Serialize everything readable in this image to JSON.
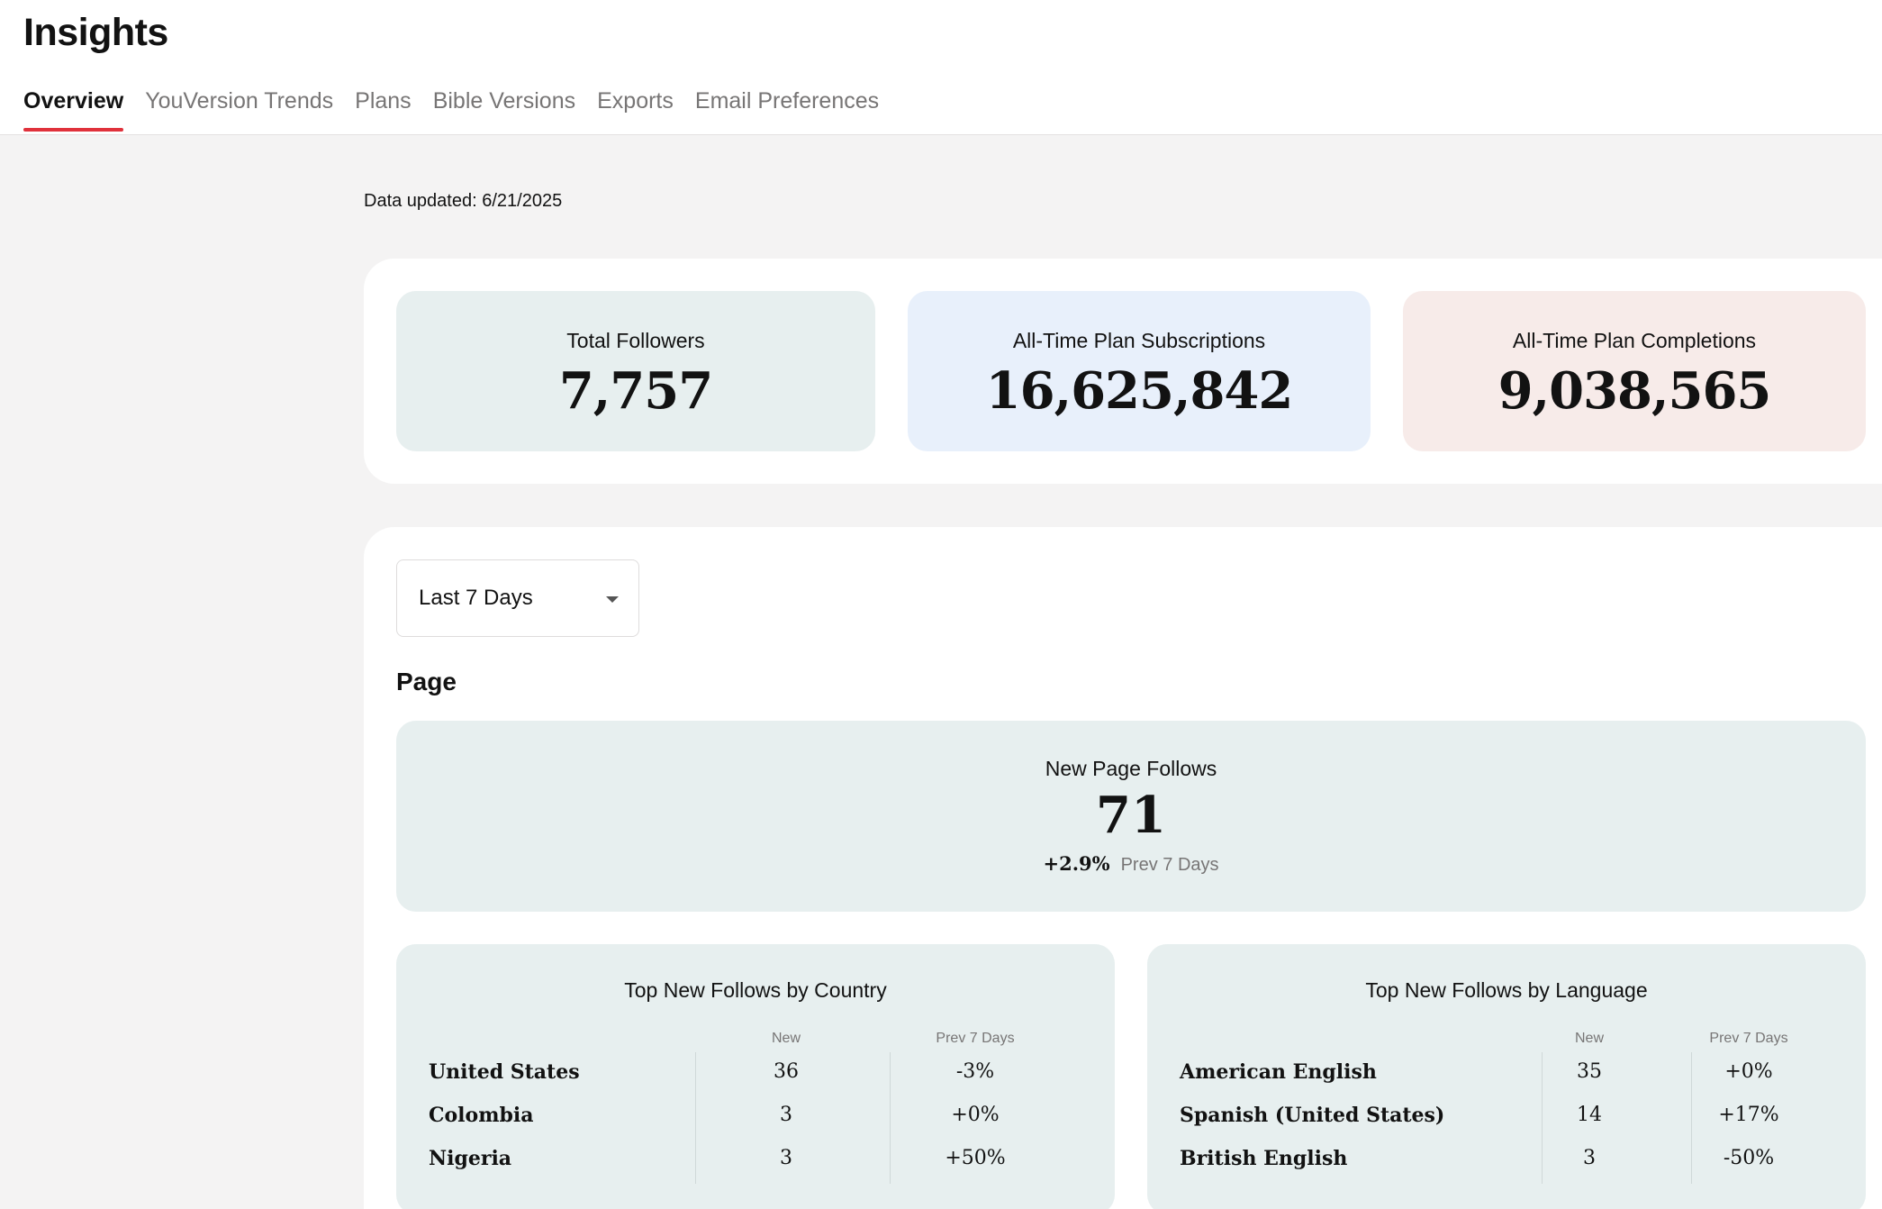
{
  "header": {
    "title": "Insights",
    "tabs": [
      {
        "label": "Overview",
        "active": true
      },
      {
        "label": "YouVersion Trends",
        "active": false
      },
      {
        "label": "Plans",
        "active": false
      },
      {
        "label": "Bible Versions",
        "active": false
      },
      {
        "label": "Exports",
        "active": false
      },
      {
        "label": "Email Preferences",
        "active": false
      }
    ]
  },
  "data_updated": "Data updated: 6/21/2025",
  "totals": {
    "followers": {
      "label": "Total Followers",
      "value": "7,757"
    },
    "subscriptions": {
      "label": "All-Time Plan Subscriptions",
      "value": "16,625,842"
    },
    "completions": {
      "label": "All-Time Plan Completions",
      "value": "9,038,565"
    }
  },
  "range_select": {
    "value": "Last 7 Days"
  },
  "page_section": {
    "title": "Page",
    "new_follows": {
      "label": "New Page Follows",
      "value": "71",
      "change": "+2.9%",
      "change_label": "Prev 7 Days"
    }
  },
  "by_country": {
    "title": "Top New Follows by Country",
    "col_new": "New",
    "col_prev": "Prev 7 Days",
    "rows": [
      {
        "name": "United States",
        "new": "36",
        "prev": "-3%"
      },
      {
        "name": "Colombia",
        "new": "3",
        "prev": "+0%"
      },
      {
        "name": "Nigeria",
        "new": "3",
        "prev": "+50%"
      }
    ]
  },
  "by_language": {
    "title": "Top New Follows by Language",
    "col_new": "New",
    "col_prev": "Prev 7 Days",
    "rows": [
      {
        "name": "American English",
        "new": "35",
        "prev": "+0%"
      },
      {
        "name": "Spanish (United States)",
        "new": "14",
        "prev": "+17%"
      },
      {
        "name": "British English",
        "new": "3",
        "prev": "-50%"
      }
    ]
  },
  "colors": {
    "accent": "#e0313b",
    "followers_bg": "#e7efef",
    "subscriptions_bg": "#e8f0fb",
    "completions_bg": "#f7ebe9"
  }
}
